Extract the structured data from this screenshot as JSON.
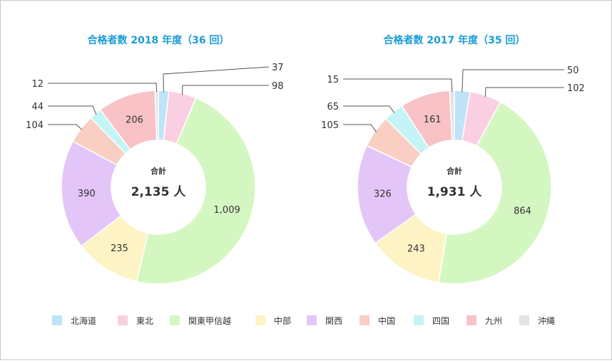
{
  "chart_data": [
    {
      "type": "pie",
      "title": "合格者数 2018 年度（36 回）",
      "center_label": "合計",
      "center_total": "2,135 人",
      "categories": [
        "北海道",
        "東北",
        "関東甲信越",
        "中部",
        "関西",
        "中国",
        "四国",
        "九州",
        "沖縄"
      ],
      "values": [
        37,
        98,
        1009,
        235,
        390,
        104,
        44,
        206,
        12
      ],
      "value_labels": [
        "37",
        "98",
        "1,009",
        "235",
        "390",
        "104",
        "44",
        "206",
        "12"
      ]
    },
    {
      "type": "pie",
      "title": "合格者数 2017 年度（35 回）",
      "center_label": "合計",
      "center_total": "1,931 人",
      "categories": [
        "北海道",
        "東北",
        "関東甲信越",
        "中部",
        "関西",
        "中国",
        "四国",
        "九州",
        "沖縄"
      ],
      "values": [
        50,
        102,
        864,
        243,
        326,
        105,
        65,
        161,
        15
      ],
      "value_labels": [
        "50",
        "102",
        "864",
        "243",
        "326",
        "105",
        "65",
        "161",
        "15"
      ]
    }
  ],
  "legend": [
    {
      "label": "北海道",
      "color": "#bfe3f8"
    },
    {
      "label": "東北",
      "color": "#fbcfe2"
    },
    {
      "label": "関東甲信越",
      "color": "#d4f7c2"
    },
    {
      "label": "中部",
      "color": "#fef3c4"
    },
    {
      "label": "関西",
      "color": "#e3c5f7"
    },
    {
      "label": "中国",
      "color": "#f8cfc2"
    },
    {
      "label": "四国",
      "color": "#c4f4f6"
    },
    {
      "label": "九州",
      "color": "#f8c2c6"
    },
    {
      "label": "沖縄",
      "color": "#e4e4e4"
    }
  ]
}
